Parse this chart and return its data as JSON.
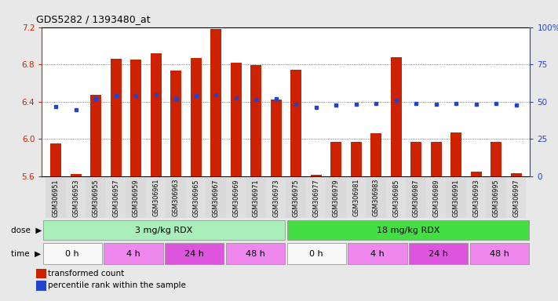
{
  "title": "GDS5282 / 1393480_at",
  "samples": [
    "GSM306951",
    "GSM306953",
    "GSM306955",
    "GSM306957",
    "GSM306959",
    "GSM306961",
    "GSM306963",
    "GSM306965",
    "GSM306967",
    "GSM306969",
    "GSM306971",
    "GSM306973",
    "GSM306975",
    "GSM306977",
    "GSM306979",
    "GSM306981",
    "GSM306983",
    "GSM306985",
    "GSM306987",
    "GSM306989",
    "GSM306991",
    "GSM306993",
    "GSM306995",
    "GSM306997"
  ],
  "bar_values": [
    5.95,
    5.62,
    6.47,
    6.86,
    6.85,
    6.92,
    6.73,
    6.87,
    7.18,
    6.82,
    6.79,
    6.42,
    6.74,
    5.61,
    5.97,
    5.97,
    6.06,
    6.88,
    5.97,
    5.97,
    6.07,
    5.65,
    5.97,
    5.63
  ],
  "blue_values": [
    6.35,
    6.31,
    6.43,
    6.46,
    6.46,
    6.47,
    6.43,
    6.46,
    6.47,
    6.44,
    6.42,
    6.43,
    6.37,
    6.34,
    6.36,
    6.37,
    6.38,
    6.41,
    6.38,
    6.37,
    6.38,
    6.37,
    6.38,
    6.36
  ],
  "ymin": 5.6,
  "ymax": 7.2,
  "bar_color": "#cc2200",
  "blue_color": "#2244cc",
  "bar_bottom": 5.6,
  "dose_labels": [
    {
      "text": "3 mg/kg RDX",
      "start": 0,
      "end": 12,
      "color": "#aaeebb"
    },
    {
      "text": "18 mg/kg RDX",
      "start": 12,
      "end": 24,
      "color": "#44dd44"
    }
  ],
  "time_labels": [
    {
      "text": "0 h",
      "start": 0,
      "end": 3,
      "color": "#f8f8f8"
    },
    {
      "text": "4 h",
      "start": 3,
      "end": 6,
      "color": "#ee88ee"
    },
    {
      "text": "24 h",
      "start": 6,
      "end": 9,
      "color": "#dd55dd"
    },
    {
      "text": "48 h",
      "start": 9,
      "end": 12,
      "color": "#ee88ee"
    },
    {
      "text": "0 h",
      "start": 12,
      "end": 15,
      "color": "#f8f8f8"
    },
    {
      "text": "4 h",
      "start": 15,
      "end": 18,
      "color": "#ee88ee"
    },
    {
      "text": "24 h",
      "start": 18,
      "end": 21,
      "color": "#dd55dd"
    },
    {
      "text": "48 h",
      "start": 21,
      "end": 24,
      "color": "#ee88ee"
    }
  ],
  "legend1_color": "#cc2200",
  "legend1_label": "transformed count",
  "legend2_color": "#2244cc",
  "legend2_label": "percentile rank within the sample",
  "bg_color": "#e8e8e8",
  "plot_bg": "#ffffff",
  "label_bg": "#cccccc"
}
